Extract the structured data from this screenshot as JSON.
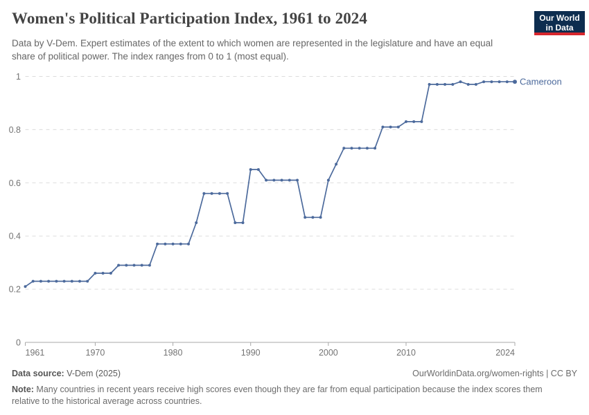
{
  "header": {
    "title": "Women's Political Participation Index, 1961 to 2024",
    "subtitle": "Data by V-Dem. Expert estimates of the extent to which women are represented in the legislature and have an equal share of political power. The index ranges from 0 to 1 (most equal)."
  },
  "logo": {
    "line1": "Our World",
    "line2": "in Data"
  },
  "chart_data": {
    "type": "line",
    "title": "Women's Political Participation Index, 1961 to 2024",
    "xlabel": "",
    "ylabel": "",
    "ylim": [
      0,
      1
    ],
    "yticks": [
      0,
      0.2,
      0.4,
      0.6,
      0.8,
      1
    ],
    "xticks": [
      1961,
      1970,
      1980,
      1990,
      2000,
      2010,
      2024
    ],
    "grid": "horizontal dashed",
    "legend": "end-of-line label",
    "x": [
      1961,
      1962,
      1963,
      1964,
      1965,
      1966,
      1967,
      1968,
      1969,
      1970,
      1971,
      1972,
      1973,
      1974,
      1975,
      1976,
      1977,
      1978,
      1979,
      1980,
      1981,
      1982,
      1983,
      1984,
      1985,
      1986,
      1987,
      1988,
      1989,
      1990,
      1991,
      1992,
      1993,
      1994,
      1995,
      1996,
      1997,
      1998,
      1999,
      2000,
      2001,
      2002,
      2003,
      2004,
      2005,
      2006,
      2007,
      2008,
      2009,
      2010,
      2011,
      2012,
      2013,
      2014,
      2015,
      2016,
      2017,
      2018,
      2019,
      2020,
      2021,
      2022,
      2023,
      2024
    ],
    "series": [
      {
        "name": "Cameroon",
        "values": [
          0.21,
          0.23,
          0.23,
          0.23,
          0.23,
          0.23,
          0.23,
          0.23,
          0.23,
          0.26,
          0.26,
          0.26,
          0.29,
          0.29,
          0.29,
          0.29,
          0.29,
          0.37,
          0.37,
          0.37,
          0.37,
          0.37,
          0.45,
          0.56,
          0.56,
          0.56,
          0.56,
          0.45,
          0.45,
          0.65,
          0.65,
          0.61,
          0.61,
          0.61,
          0.61,
          0.61,
          0.47,
          0.47,
          0.47,
          0.61,
          0.67,
          0.73,
          0.73,
          0.73,
          0.73,
          0.73,
          0.81,
          0.81,
          0.81,
          0.83,
          0.83,
          0.83,
          0.97,
          0.97,
          0.97,
          0.97,
          0.98,
          0.97,
          0.97,
          0.98,
          0.98,
          0.98,
          0.98,
          0.98
        ]
      }
    ]
  },
  "footer": {
    "data_source_label": "Data source:",
    "data_source_value": " V-Dem (2025)",
    "attribution": "OurWorldinData.org/women-rights | CC BY",
    "note_label": "Note:",
    "note_text": " Many countries in recent years receive high scores even though they are far from equal participation because the index scores them relative to the historical average across countries."
  },
  "colors": {
    "line": "#4C6A9C",
    "entity_label": "#4C6A9C",
    "grid": "#dcdcdc",
    "axis": "#a8a8a8",
    "tick_label": "#737373",
    "logo_bg": "#0d2d4f",
    "logo_accent": "#d7262d"
  }
}
